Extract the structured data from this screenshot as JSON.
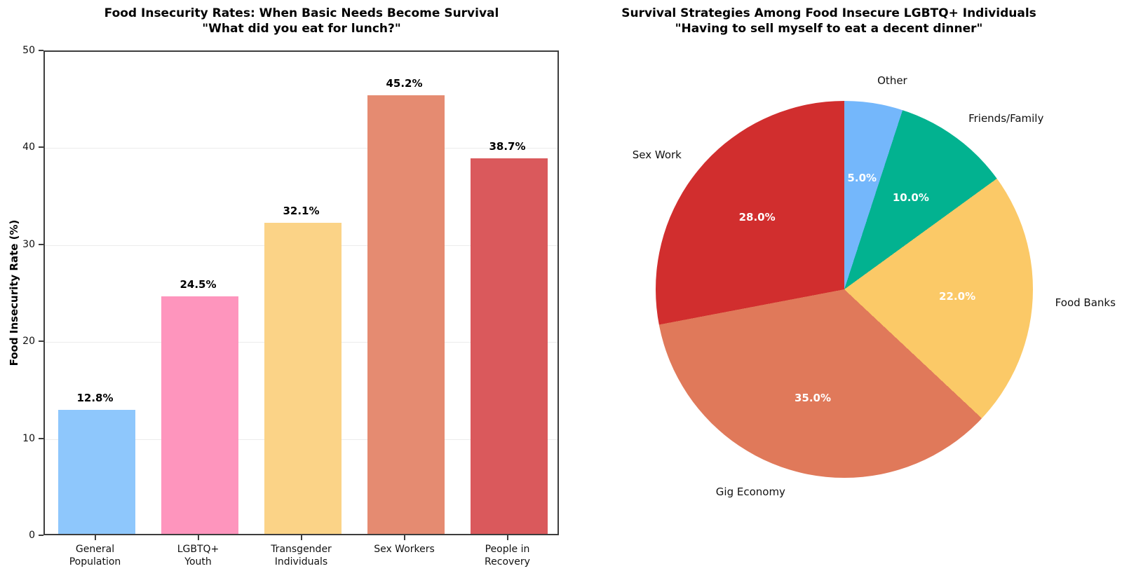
{
  "figure": {
    "background_color": "#ffffff",
    "text_color": "#000000",
    "spine_color": "#3d3d3d",
    "gridline_color": "#ececec"
  },
  "chart_data": [
    {
      "type": "bar",
      "title": "Food Insecurity Rates: When Basic Needs Become Survival",
      "subtitle": "\"What did you eat for lunch?\"",
      "xlabel": "",
      "ylabel": "Food Insecurity Rate (%)",
      "categories": [
        "General\nPopulation",
        "LGBTQ+\nYouth",
        "Transgender\nIndividuals",
        "Sex Workers",
        "People in\nRecovery"
      ],
      "values": [
        12.8,
        24.5,
        32.1,
        45.2,
        38.7
      ],
      "bar_value_labels": [
        "12.8%",
        "24.5%",
        "32.1%",
        "45.2%",
        "38.7%"
      ],
      "bar_colors": [
        "#8ec7fc",
        "#fe95bd",
        "#fbd387",
        "#e58b71",
        "#da595c"
      ],
      "ylim": [
        0,
        50
      ],
      "yticks": [
        0,
        10,
        20,
        30,
        40,
        50
      ],
      "grid": "horizontal light gridlines at 10,20,30,40",
      "legend": "none"
    },
    {
      "type": "pie",
      "title": "Survival Strategies Among Food Insecure LGBTQ+ Individuals",
      "subtitle": "\"Having to sell myself to eat a decent dinner\"",
      "labels": [
        "Other",
        "Friends/Family",
        "Food Banks",
        "Gig Economy",
        "Sex Work"
      ],
      "values": [
        5.0,
        10.0,
        22.0,
        35.0,
        28.0
      ],
      "pct_labels": [
        "5.0%",
        "10.0%",
        "22.0%",
        "35.0%",
        "28.0%"
      ],
      "colors": [
        "#74b7fb",
        "#02b290",
        "#fbc967",
        "#e0795a",
        "#d12e2e"
      ],
      "pct_label_color": "#ffffff",
      "start_angle": "12 o'clock, clockwise",
      "legend": "none"
    }
  ]
}
